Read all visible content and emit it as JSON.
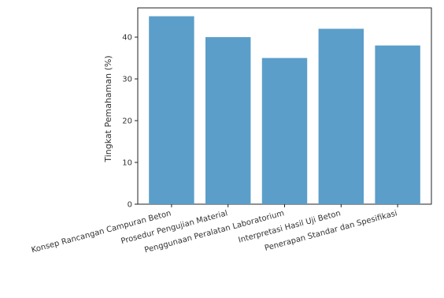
{
  "chart_data": {
    "type": "bar",
    "title": "",
    "xlabel": "",
    "ylabel": "Tingkat Pemahaman (%)",
    "categories": [
      "Konsep Rancangan Campuran Beton",
      "Prosedur Pengujian Material",
      "Penggunaan Peralatan Laboratorium",
      "Interpretasi Hasil Uji Beton",
      "Penerapan Standar dan Spesifikasi"
    ],
    "values": [
      45,
      40,
      35,
      42,
      38
    ],
    "ylim": [
      0,
      47
    ],
    "yticks": [
      0,
      10,
      20,
      30,
      40
    ],
    "bar_color": "#5b9ec9",
    "grid": false
  }
}
